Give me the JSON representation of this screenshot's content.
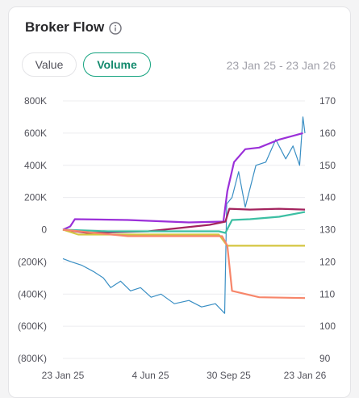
{
  "widget": {
    "title": "Broker Flow",
    "info_icon": "info-circle-icon",
    "toggles": [
      {
        "label": "Value",
        "selected": false
      },
      {
        "label": "Volume",
        "selected": true
      }
    ],
    "date_range": "23 Jan 25 - 23 Jan 26"
  },
  "colors": {
    "accent": "#14a37f",
    "price": "#3a8fc4",
    "purple": "#9b30d9",
    "maroon": "#a3235e",
    "teal": "#3cbfa3",
    "yellow": "#d4c640",
    "salmon": "#f7866a"
  },
  "chart_data": {
    "type": "line",
    "x": [
      "23 Jan 25",
      "4 Jun 25",
      "30 Sep 25",
      "23 Jan 26"
    ],
    "x_ticks": [
      "23 Jan 25",
      "4 Jun 25",
      "30 Sep 25",
      "23 Jan 26"
    ],
    "y_left_ticks": [
      "800K",
      "600K",
      "400K",
      "200K",
      "0",
      "(200K)",
      "(400K)",
      "(600K)",
      "(800K)"
    ],
    "y_right_ticks": [
      "170",
      "160",
      "150",
      "140",
      "130",
      "120",
      "110",
      "100",
      "90"
    ],
    "y_left_range": [
      -800000,
      800000
    ],
    "y_right_range": [
      90,
      170
    ],
    "grid": true,
    "series": [
      {
        "axis": "left",
        "color": "purple",
        "points": [
          [
            "2025-01-23",
            0
          ],
          [
            "2025-02-03",
            20000
          ],
          [
            "2025-02-10",
            65000
          ],
          [
            "2025-05-01",
            60000
          ],
          [
            "2025-08-01",
            45000
          ],
          [
            "2025-09-22",
            50000
          ],
          [
            "2025-09-28",
            240000
          ],
          [
            "2025-10-08",
            420000
          ],
          [
            "2025-10-25",
            500000
          ],
          [
            "2025-11-15",
            510000
          ],
          [
            "2025-12-15",
            560000
          ],
          [
            "2026-01-20",
            600000
          ]
        ]
      },
      {
        "axis": "left",
        "color": "maroon",
        "points": [
          [
            "2025-01-23",
            0
          ],
          [
            "2025-03-01",
            -20000
          ],
          [
            "2025-06-01",
            -10000
          ],
          [
            "2025-09-01",
            30000
          ],
          [
            "2025-09-25",
            50000
          ],
          [
            "2025-10-01",
            130000
          ],
          [
            "2025-11-01",
            125000
          ],
          [
            "2025-12-15",
            130000
          ],
          [
            "2026-01-23",
            125000
          ]
        ]
      },
      {
        "axis": "left",
        "color": "teal",
        "points": [
          [
            "2025-01-23",
            0
          ],
          [
            "2025-04-01",
            -10000
          ],
          [
            "2025-09-15",
            -10000
          ],
          [
            "2025-09-25",
            -20000
          ],
          [
            "2025-10-05",
            60000
          ],
          [
            "2025-11-01",
            65000
          ],
          [
            "2025-12-15",
            80000
          ],
          [
            "2026-01-23",
            110000
          ]
        ]
      },
      {
        "axis": "left",
        "color": "yellow",
        "points": [
          [
            "2025-01-23",
            0
          ],
          [
            "2025-02-15",
            -30000
          ],
          [
            "2025-09-15",
            -30000
          ],
          [
            "2025-09-28",
            -100000
          ],
          [
            "2026-01-23",
            -100000
          ]
        ]
      },
      {
        "axis": "left",
        "color": "salmon",
        "points": [
          [
            "2025-01-23",
            0
          ],
          [
            "2025-05-01",
            -40000
          ],
          [
            "2025-09-20",
            -40000
          ],
          [
            "2025-09-28",
            -100000
          ],
          [
            "2025-10-05",
            -380000
          ],
          [
            "2025-11-15",
            -420000
          ],
          [
            "2026-01-23",
            -425000
          ]
        ]
      },
      {
        "axis": "right",
        "color": "price",
        "points": [
          [
            "2025-01-23",
            121
          ],
          [
            "2025-02-05",
            120
          ],
          [
            "2025-02-20",
            119
          ],
          [
            "2025-03-10",
            117
          ],
          [
            "2025-03-25",
            115
          ],
          [
            "2025-04-05",
            112
          ],
          [
            "2025-04-20",
            114
          ],
          [
            "2025-05-05",
            111
          ],
          [
            "2025-05-20",
            112
          ],
          [
            "2025-06-05",
            109
          ],
          [
            "2025-06-20",
            110
          ],
          [
            "2025-07-10",
            107
          ],
          [
            "2025-08-01",
            108
          ],
          [
            "2025-08-20",
            106
          ],
          [
            "2025-09-10",
            107
          ],
          [
            "2025-09-24",
            104
          ],
          [
            "2025-09-27",
            138
          ],
          [
            "2025-10-05",
            140
          ],
          [
            "2025-10-15",
            148
          ],
          [
            "2025-10-25",
            137
          ],
          [
            "2025-11-10",
            150
          ],
          [
            "2025-11-25",
            151
          ],
          [
            "2025-12-10",
            158
          ],
          [
            "2025-12-25",
            152
          ],
          [
            "2026-01-05",
            156
          ],
          [
            "2026-01-15",
            150
          ],
          [
            "2026-01-20",
            165
          ],
          [
            "2026-01-23",
            160
          ]
        ]
      }
    ]
  }
}
